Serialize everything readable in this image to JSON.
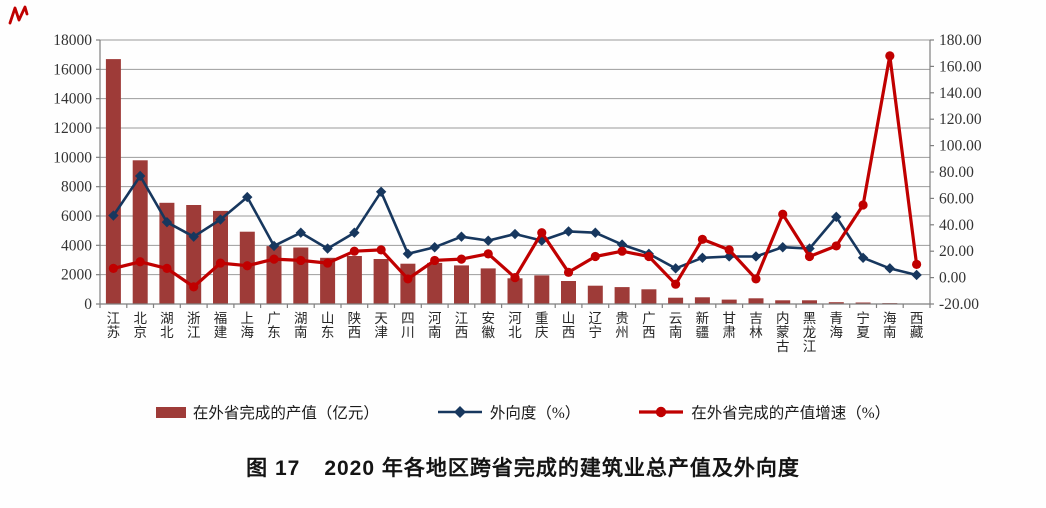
{
  "watermark": {
    "color": "#c00000"
  },
  "figure": {
    "label": "图 17",
    "title": "2020 年各地区跨省完成的建筑业总产值及外向度"
  },
  "chart_data": {
    "type": "bar",
    "subtype": "combo-bar-line",
    "title": "图 17 2020 年各地区跨省完成的建筑业总产值及外向度",
    "grid": true,
    "legend_position": "bottom",
    "categories": [
      "江苏",
      "北京",
      "湖北",
      "浙江",
      "福建",
      "上海",
      "广东",
      "湖南",
      "山东",
      "陕西",
      "天津",
      "四川",
      "河南",
      "江西",
      "安徽",
      "河北",
      "重庆",
      "山西",
      "辽宁",
      "贵州",
      "广西",
      "云南",
      "新疆",
      "甘肃",
      "吉林",
      "内蒙古",
      "黑龙江",
      "青海",
      "宁夏",
      "海南",
      "西藏"
    ],
    "series": [
      {
        "name": "在外省完成的产值（亿元）",
        "type": "bar",
        "axis": "left",
        "marker": "none",
        "color": "#9e3b38",
        "values": [
          16700,
          9800,
          6900,
          6750,
          6350,
          4930,
          3950,
          3850,
          3150,
          3270,
          3070,
          2750,
          2800,
          2630,
          2430,
          1750,
          1950,
          1570,
          1250,
          1150,
          1000,
          430,
          460,
          300,
          390,
          250,
          250,
          120,
          100,
          60,
          25
        ]
      },
      {
        "name": "外向度（%）",
        "type": "line",
        "axis": "right",
        "marker": "diamond",
        "color": "#17375e",
        "values": [
          47,
          77,
          42,
          31,
          44,
          61,
          24,
          34,
          22,
          34,
          65,
          18,
          23,
          31,
          28,
          33,
          28,
          35,
          34,
          25,
          18,
          7,
          15,
          16,
          16,
          23,
          22,
          46,
          15,
          7,
          2
        ]
      },
      {
        "name": "在外省完成的产值增速（%）",
        "type": "line",
        "axis": "right",
        "marker": "circle",
        "color": "#c00000",
        "values": [
          7,
          12,
          7,
          -7,
          11,
          9,
          14,
          13,
          11,
          20,
          21,
          -1,
          13,
          14,
          18,
          0,
          34,
          4,
          16,
          20,
          16,
          -5,
          29,
          21,
          -1,
          48,
          16,
          24,
          55,
          168,
          10
        ]
      }
    ],
    "left_axis": {
      "min": 0,
      "max": 18000,
      "step": 2000,
      "ticks": [
        "0",
        "2000",
        "4000",
        "6000",
        "8000",
        "10000",
        "12000",
        "14000",
        "16000",
        "18000"
      ]
    },
    "right_axis": {
      "min": -20,
      "max": 180,
      "step": 20,
      "ticks": [
        "-20.00",
        "0.00",
        "20.00",
        "40.00",
        "60.00",
        "80.00",
        "100.00",
        "120.00",
        "140.00",
        "160.00",
        "180.00"
      ]
    },
    "xlabel": "",
    "ylabel": ""
  }
}
